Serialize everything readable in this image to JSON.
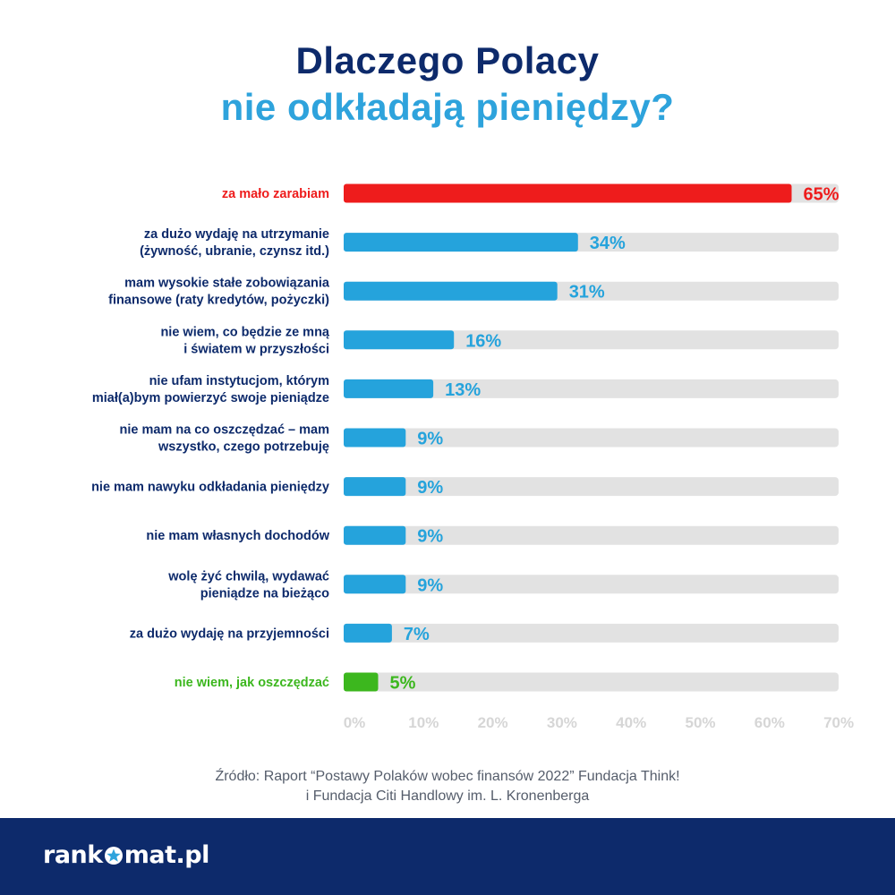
{
  "title": {
    "line1": "Dlaczego Polacy",
    "line2": "nie odkładają pieniędzy?"
  },
  "colors": {
    "title_dark": "#0d2a6b",
    "title_light": "#2ea3dc",
    "bar_default": "#25a3dc",
    "bar_highlight_top": "#ee1c1c",
    "bar_highlight_bottom": "#3cb71e",
    "track": "#e2e2e2",
    "label_dark": "#0d2a6b",
    "tick": "#d6d6d6",
    "footer_bg": "#0d2a6b"
  },
  "chart_data": {
    "type": "bar",
    "orientation": "horizontal",
    "categories": [
      [
        "za mało zarabiam"
      ],
      [
        "za dużo wydaję na utrzymanie",
        "(żywność, ubranie, czynsz itd.)"
      ],
      [
        "mam wysokie stałe zobowiązania",
        "finansowe (raty kredytów, pożyczki)"
      ],
      [
        "nie wiem, co będzie ze mną",
        "i światem w przyszłości"
      ],
      [
        "nie ufam instytucjom, którym",
        "miał(a)bym powierzyć swoje pieniądze"
      ],
      [
        "nie mam na co oszczędzać – mam",
        "wszystko, czego potrzebuję"
      ],
      [
        "nie mam nawyku odkładania pieniędzy"
      ],
      [
        "nie mam własnych dochodów"
      ],
      [
        "wolę żyć chwilą, wydawać",
        "pieniądze na bieżąco"
      ],
      [
        "za dużo wydaję na przyjemności"
      ],
      [
        "nie wiem, jak oszczędzać"
      ]
    ],
    "values": [
      65,
      34,
      31,
      16,
      13,
      9,
      9,
      9,
      9,
      7,
      5
    ],
    "value_labels": [
      "65%",
      "34%",
      "31%",
      "16%",
      "13%",
      "9%",
      "9%",
      "9%",
      "9%",
      "7%",
      "5%"
    ],
    "highlight": [
      "top",
      "",
      "",
      "",
      "",
      "",
      "",
      "",
      "",
      "",
      "bottom"
    ],
    "xlim": [
      0,
      70
    ],
    "xticks": [
      "0%",
      "10%",
      "20%",
      "30%",
      "40%",
      "50%",
      "60%",
      "70%"
    ],
    "grid": false,
    "legend": "none"
  },
  "source": {
    "line1": "Źródło: Raport “Postawy Polaków wobec finansów 2022” Fundacja Think!",
    "line2": "i Fundacja Citi Handlowy im. L. Kronenberga"
  },
  "footer": {
    "logo_left": "rank",
    "logo_right": "mat.pl",
    "logo_icon": "star-o-icon"
  }
}
